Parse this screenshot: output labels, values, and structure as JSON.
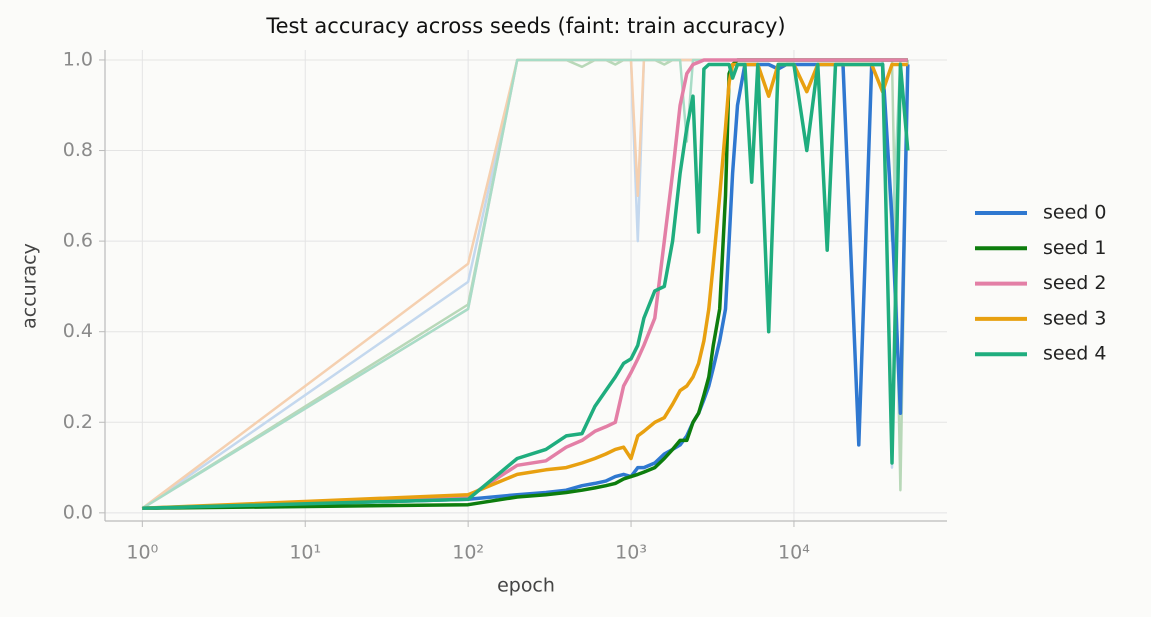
{
  "chart_data": {
    "type": "line",
    "title": "Test accuracy across seeds (faint: train accuracy)",
    "x_label": "epoch",
    "y_label": "accuracy",
    "xscale": "log",
    "grid": true,
    "xlim": [
      0.59,
      87000
    ],
    "ylim": [
      -0.018,
      1.022
    ],
    "xticks": [
      {
        "value": 1,
        "label": "10⁰"
      },
      {
        "value": 10,
        "label": "10¹"
      },
      {
        "value": 100,
        "label": "10²"
      },
      {
        "value": 1000,
        "label": "10³"
      },
      {
        "value": 10000,
        "label": "10⁴"
      }
    ],
    "yticks": [
      {
        "value": 0,
        "label": "0.0"
      },
      0.2,
      0.4,
      0.6,
      0.8,
      {
        "value": 1,
        "label": "1.0"
      }
    ],
    "x": [
      1,
      100,
      200,
      300,
      400,
      500,
      600,
      700,
      800,
      900,
      1000,
      1100,
      1200,
      1400,
      1600,
      1800,
      2000,
      2200,
      2400,
      2600,
      2800,
      3000,
      3200,
      3500,
      3800,
      4000,
      4200,
      4500,
      5000,
      5500,
      6000,
      7000,
      8000,
      9000,
      10000,
      12000,
      14000,
      16000,
      18000,
      20000,
      25000,
      30000,
      35000,
      40000,
      45000,
      50000
    ],
    "train_series": [
      {
        "color": "#c4d8ee",
        "values": [
          0.01,
          0.51,
          1,
          1,
          1,
          1,
          1,
          1,
          1,
          1,
          1,
          0.6,
          1,
          1,
          1,
          1,
          1,
          1,
          1,
          1,
          1,
          1,
          1,
          1,
          1,
          1,
          1,
          1,
          1,
          1,
          1,
          1,
          1,
          1,
          1,
          1,
          1,
          1,
          1,
          1,
          1,
          1,
          1,
          0.1,
          1,
          1
        ]
      },
      {
        "color": "#b8d8b8",
        "values": [
          0.01,
          0.46,
          1,
          1,
          1,
          0.985,
          1,
          1,
          0.99,
          1,
          1,
          1,
          1,
          1,
          0.99,
          1,
          1,
          1,
          1,
          1,
          1,
          1,
          1,
          1,
          1,
          1,
          1,
          1,
          1,
          1,
          1,
          1,
          1,
          1,
          1,
          1,
          1,
          1,
          1,
          1,
          1,
          1,
          1,
          1,
          0.05,
          1
        ]
      },
      {
        "color": "#f0c8d6",
        "values": [
          0.01,
          0.45,
          1,
          1,
          1,
          1,
          1,
          1,
          1,
          1,
          1,
          1,
          1,
          1,
          1,
          1,
          1,
          1,
          1,
          1,
          1,
          1,
          1,
          1,
          1,
          1,
          1,
          1,
          1,
          1,
          1,
          1,
          1,
          1,
          1,
          1,
          1,
          1,
          1,
          1,
          1,
          1,
          1,
          1,
          1,
          1
        ]
      },
      {
        "color": "#f5d0b0",
        "values": [
          0.01,
          0.55,
          1,
          1,
          1,
          1,
          1,
          1,
          1,
          1,
          1,
          0.7,
          1,
          1,
          1,
          1,
          1,
          1,
          1,
          1,
          1,
          1,
          1,
          1,
          1,
          1,
          1,
          1,
          1,
          1,
          1,
          1,
          1,
          1,
          1,
          1,
          1,
          1,
          1,
          1,
          1,
          1,
          1,
          1,
          1,
          1
        ]
      },
      {
        "color": "#a8dcc6",
        "values": [
          0.01,
          0.45,
          1,
          1,
          1,
          1,
          1,
          1,
          1,
          1,
          1,
          1,
          1,
          1,
          1,
          1,
          1,
          0.82,
          1,
          1,
          1,
          1,
          1,
          1,
          1,
          1,
          1,
          1,
          1,
          1,
          1,
          1,
          1,
          1,
          1,
          1,
          1,
          1,
          1,
          1,
          1,
          1,
          1,
          0.6,
          1,
          1
        ]
      }
    ],
    "series": [
      {
        "name": "seed 0",
        "color": "#2f78d0",
        "values": [
          0.01,
          0.03,
          0.04,
          0.045,
          0.05,
          0.06,
          0.065,
          0.07,
          0.08,
          0.085,
          0.08,
          0.1,
          0.1,
          0.11,
          0.13,
          0.14,
          0.15,
          0.17,
          0.2,
          0.22,
          0.25,
          0.28,
          0.32,
          0.38,
          0.45,
          0.6,
          0.75,
          0.9,
          0.99,
          0.99,
          0.99,
          0.99,
          0.98,
          0.99,
          0.99,
          0.99,
          0.99,
          0.99,
          0.99,
          0.99,
          0.15,
          0.99,
          0.99,
          0.65,
          0.22,
          0.99
        ]
      },
      {
        "name": "seed 1",
        "color": "#0d7d0d",
        "values": [
          0.01,
          0.018,
          0.035,
          0.04,
          0.045,
          0.05,
          0.055,
          0.06,
          0.065,
          0.075,
          0.08,
          0.085,
          0.09,
          0.1,
          0.12,
          0.14,
          0.16,
          0.16,
          0.2,
          0.22,
          0.26,
          0.3,
          0.37,
          0.45,
          0.7,
          0.97,
          0.99,
          1,
          1,
          1,
          1,
          1,
          1,
          1,
          1,
          1,
          1,
          1,
          1,
          1,
          1,
          1,
          1,
          1,
          1,
          1
        ]
      },
      {
        "name": "seed 2",
        "color": "#e37fa6",
        "values": [
          0.01,
          0.035,
          0.105,
          0.115,
          0.145,
          0.16,
          0.18,
          0.19,
          0.2,
          0.28,
          0.31,
          0.34,
          0.37,
          0.43,
          0.6,
          0.75,
          0.9,
          0.97,
          0.99,
          0.995,
          1,
          1,
          1,
          1,
          1,
          1,
          1,
          1,
          1,
          1,
          1,
          1,
          1,
          1,
          1,
          1,
          1,
          1,
          1,
          1,
          1,
          1,
          1,
          1,
          1,
          1
        ]
      },
      {
        "name": "seed 3",
        "color": "#e8a010",
        "values": [
          0.01,
          0.04,
          0.085,
          0.095,
          0.1,
          0.11,
          0.12,
          0.13,
          0.14,
          0.145,
          0.12,
          0.17,
          0.18,
          0.2,
          0.21,
          0.24,
          0.27,
          0.28,
          0.3,
          0.33,
          0.38,
          0.45,
          0.55,
          0.7,
          0.85,
          0.95,
          0.99,
          0.99,
          0.99,
          0.99,
          0.99,
          0.92,
          0.99,
          0.99,
          0.99,
          0.93,
          0.99,
          0.99,
          0.99,
          0.99,
          0.99,
          0.99,
          0.93,
          0.99,
          0.99,
          0.99
        ]
      },
      {
        "name": "seed 4",
        "color": "#1fad7e",
        "values": [
          0.01,
          0.03,
          0.12,
          0.14,
          0.17,
          0.175,
          0.235,
          0.27,
          0.3,
          0.33,
          0.34,
          0.37,
          0.43,
          0.49,
          0.5,
          0.6,
          0.75,
          0.85,
          0.92,
          0.62,
          0.98,
          0.99,
          0.99,
          0.99,
          0.99,
          0.99,
          0.96,
          0.99,
          0.99,
          0.73,
          0.99,
          0.4,
          0.99,
          0.99,
          0.99,
          0.8,
          0.99,
          0.58,
          0.99,
          0.99,
          0.99,
          0.99,
          0.99,
          0.11,
          0.99,
          0.8
        ]
      }
    ]
  }
}
